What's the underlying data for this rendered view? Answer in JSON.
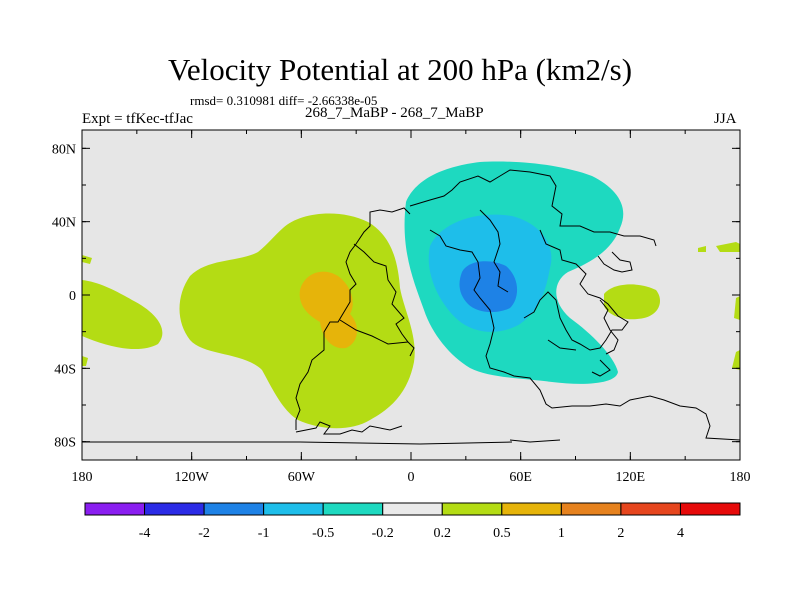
{
  "title": "Velocity Potential at 200 hPa (km2/s)",
  "stats": "rmsd= 0.310981 diff= -2.66338e-05",
  "left_label": "Expt = tfKec-tfJac",
  "center_label": "268_7_MaBP - 268_7_MaBP",
  "right_label": "JJA",
  "x_ticks": [
    "180",
    "120W",
    "60W",
    "0",
    "60E",
    "120E",
    "180"
  ],
  "y_ticks": [
    "80N",
    "40N",
    "0",
    "40S",
    "80S"
  ],
  "colorbar": {
    "labels": [
      "-4",
      "-2",
      "-1",
      "-0.5",
      "-0.2",
      "0.2",
      "0.5",
      "1",
      "2",
      "4"
    ],
    "colors": [
      "#8a1ef0",
      "#2b2be6",
      "#1e82e6",
      "#1ebeea",
      "#1ed9c0",
      "#eaeaea",
      "#b4dc14",
      "#e6b40a",
      "#e6821e",
      "#e6461e",
      "#e60a0a"
    ]
  },
  "map": {
    "background_color": "#e6e6e6",
    "lon_range": [
      -180,
      180
    ],
    "lat_range": [
      -90,
      90
    ]
  }
}
